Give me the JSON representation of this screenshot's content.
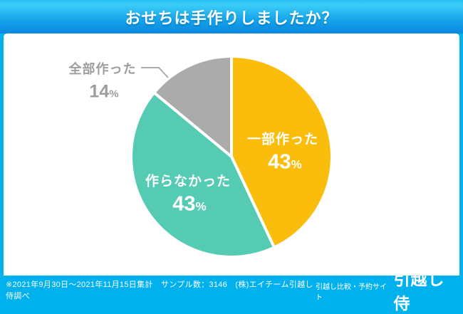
{
  "header": {
    "title": "おせちは手作りしましたか？"
  },
  "chart_data": {
    "type": "pie",
    "title": "おせちは手作りしましたか？",
    "start_angle": "top",
    "direction": "clockwise",
    "slice_gap_color": "#ffffff",
    "segments": [
      {
        "label": "一部作った",
        "value": 43,
        "unit": "%",
        "color": "#fbbd0b",
        "label_position": "inside"
      },
      {
        "label": "作らなかった",
        "value": 43,
        "unit": "%",
        "color": "#54cbb2",
        "label_position": "inside"
      },
      {
        "label": "全部作った",
        "value": 14,
        "unit": "%",
        "color": "#ababab",
        "label_position": "outside-left",
        "label_color": "#9d9d9e"
      }
    ]
  },
  "footer": {
    "note": "※2021年9月30日～2021年11月15日集計　サンプル数：3146　(株)エイチーム引越し侍調べ",
    "brand_tagline": "引越し比較・予約サイト",
    "brand_logo": "引越し侍"
  },
  "colors": {
    "page_background": "#00b1ee",
    "header_gradient_top": "#3bcdf8",
    "header_gradient_bottom": "#0a88e0",
    "card_background": "#ffffff",
    "title_text": "#ffffff",
    "footer_text": "#ffffff"
  }
}
